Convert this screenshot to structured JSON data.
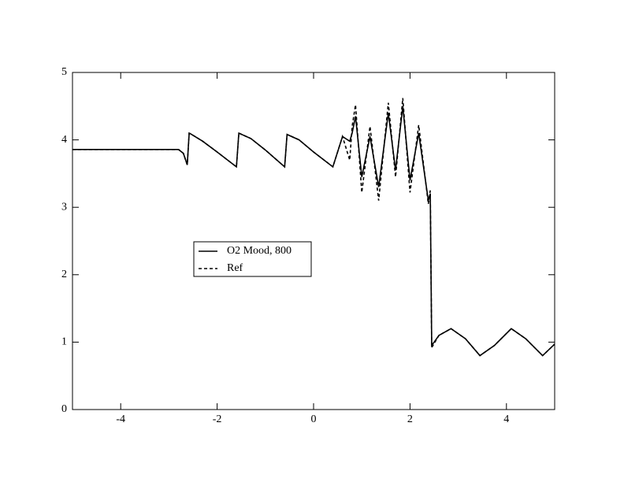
{
  "chart_data": {
    "type": "line",
    "x": [
      -5,
      -2.8,
      -2.7,
      -2.62,
      -2.58,
      -2.55,
      -2.3,
      -2.0,
      -1.6,
      -1.55,
      -1.3,
      -1.0,
      -0.6,
      -0.55,
      -0.3,
      0,
      0.4,
      0.6,
      0.75,
      0.8,
      0.87,
      1.0,
      1.17,
      1.35,
      1.55,
      1.7,
      1.85,
      2.0,
      2.18,
      2.38,
      2.42,
      2.45,
      2.6,
      2.85,
      3.15,
      3.45,
      3.75,
      4.1,
      4.4,
      4.75,
      5
    ],
    "series": [
      {
        "name": "O2 Mood, 800",
        "color": "#000000",
        "dash": false,
        "values": [
          3.857,
          3.857,
          3.8,
          3.63,
          4.1,
          4.09,
          3.98,
          3.82,
          3.6,
          4.1,
          4.02,
          3.85,
          3.6,
          4.08,
          4.0,
          3.82,
          3.6,
          4.05,
          3.98,
          4.1,
          4.35,
          3.45,
          4.05,
          3.3,
          4.4,
          3.55,
          4.5,
          3.4,
          4.1,
          3.1,
          3.2,
          0.95,
          1.1,
          1.2,
          1.05,
          0.8,
          0.95,
          1.2,
          1.05,
          0.8,
          0.97
        ]
      },
      {
        "name": "Ref",
        "color": "#000000",
        "dash": true,
        "values": [
          3.857,
          3.857,
          3.8,
          3.63,
          4.1,
          4.09,
          3.98,
          3.82,
          3.6,
          4.1,
          4.02,
          3.85,
          3.6,
          4.08,
          4.0,
          3.82,
          3.6,
          4.05,
          3.7,
          4.2,
          4.52,
          3.22,
          4.2,
          3.1,
          4.55,
          3.45,
          4.62,
          3.22,
          4.22,
          3.05,
          3.25,
          0.92,
          1.1,
          1.2,
          1.05,
          0.8,
          0.95,
          1.2,
          1.05,
          0.8,
          0.97
        ]
      }
    ],
    "xlim": [
      -5,
      5
    ],
    "ylim": [
      0,
      5
    ],
    "xticks": [
      -4,
      -2,
      0,
      2,
      4
    ],
    "yticks": [
      0,
      1,
      2,
      3,
      4,
      5
    ]
  }
}
